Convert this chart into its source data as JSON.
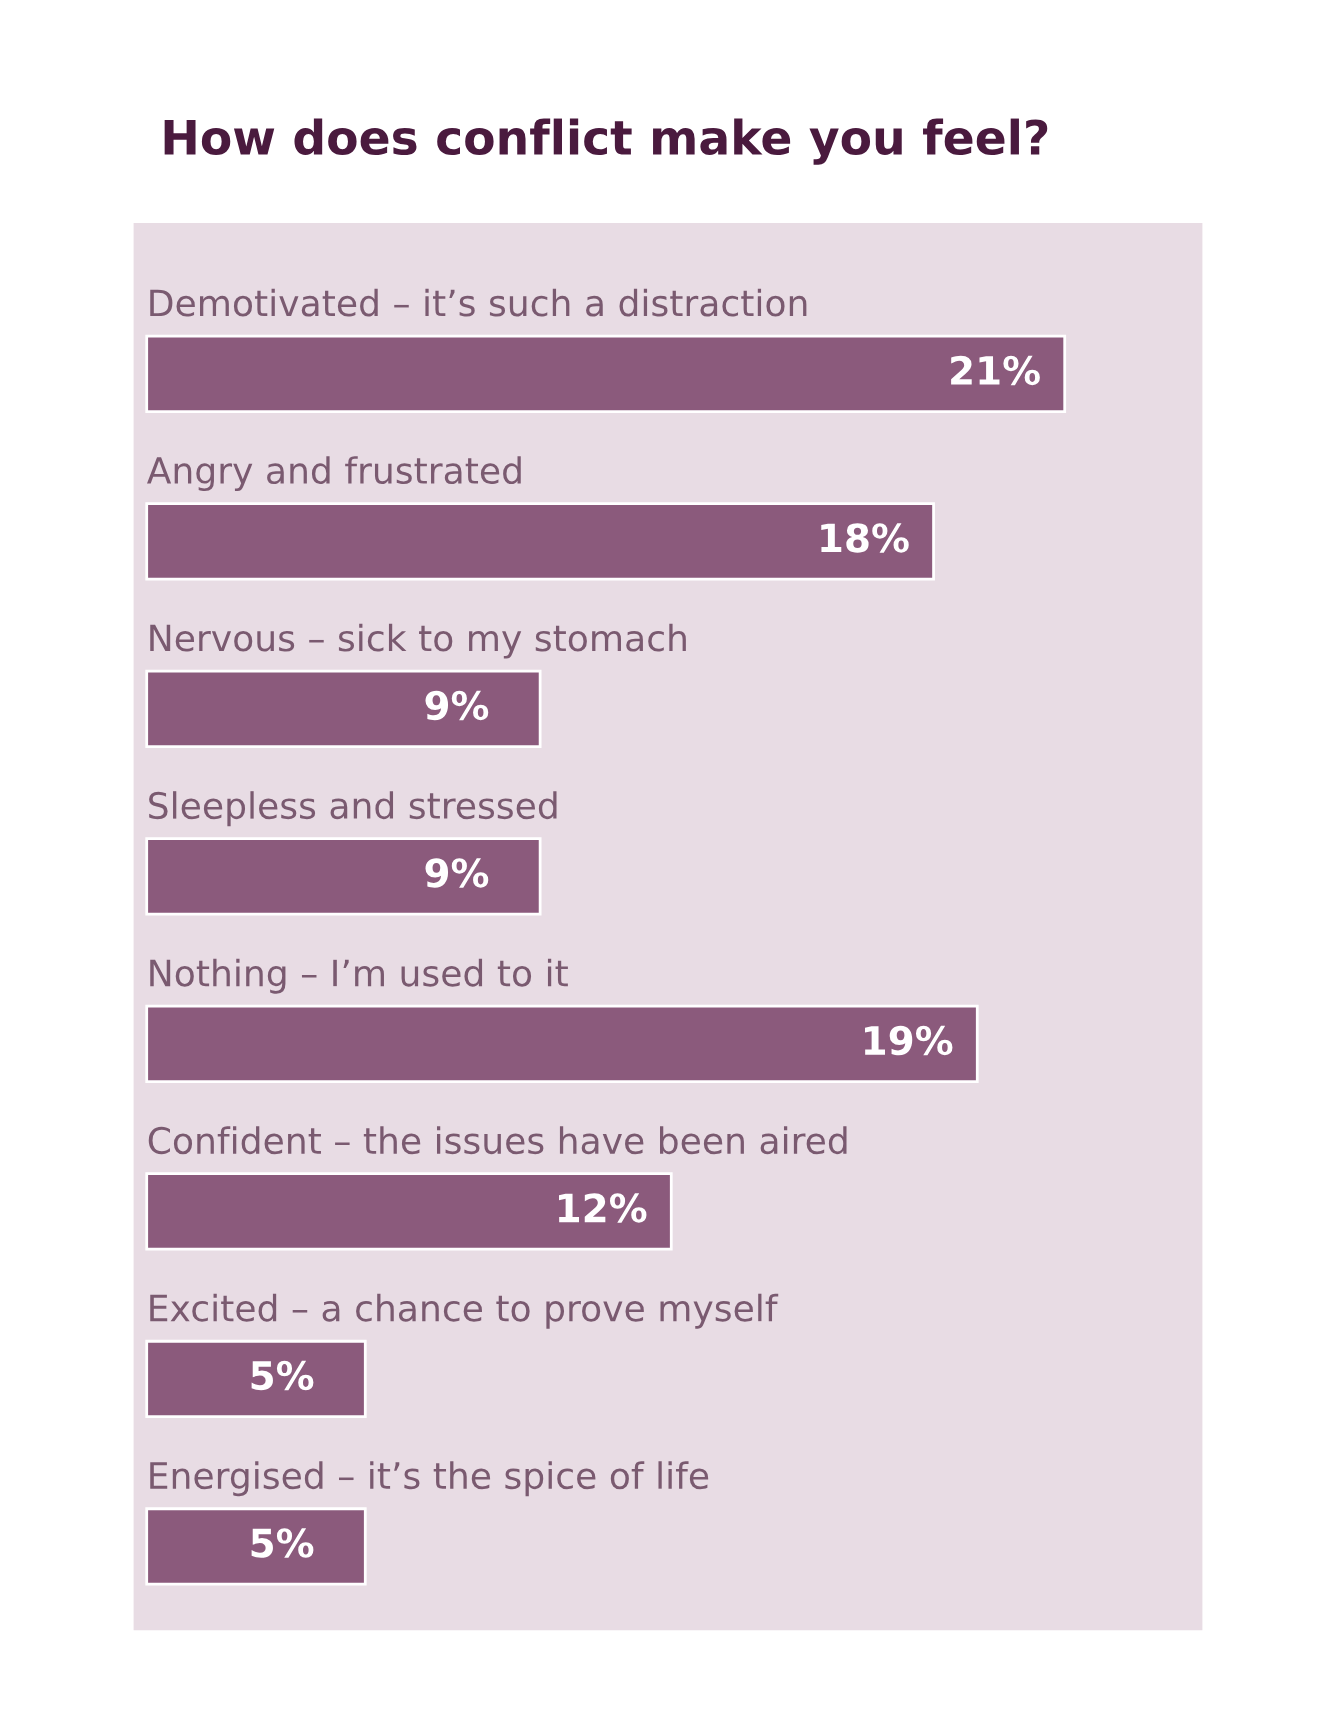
{
  "chart_data": {
    "type": "bar",
    "orientation": "horizontal",
    "title": "How does conflict make you feel?",
    "categories": [
      "Demotivated – it’s such a distraction",
      "Angry and frustrated",
      "Nervous – sick to my stomach",
      "Sleepless and stressed",
      "Nothing – I’m used to it",
      "Confident – the issues have been aired",
      "Excited – a chance to prove myself",
      "Energised – it’s the spice of life"
    ],
    "values": [
      21,
      18,
      9,
      9,
      19,
      12,
      5,
      5
    ],
    "value_labels": [
      "21%",
      "18%",
      "9%",
      "9%",
      "19%",
      "12%",
      "5%",
      "5%"
    ],
    "color": "#8b5a7c"
  }
}
